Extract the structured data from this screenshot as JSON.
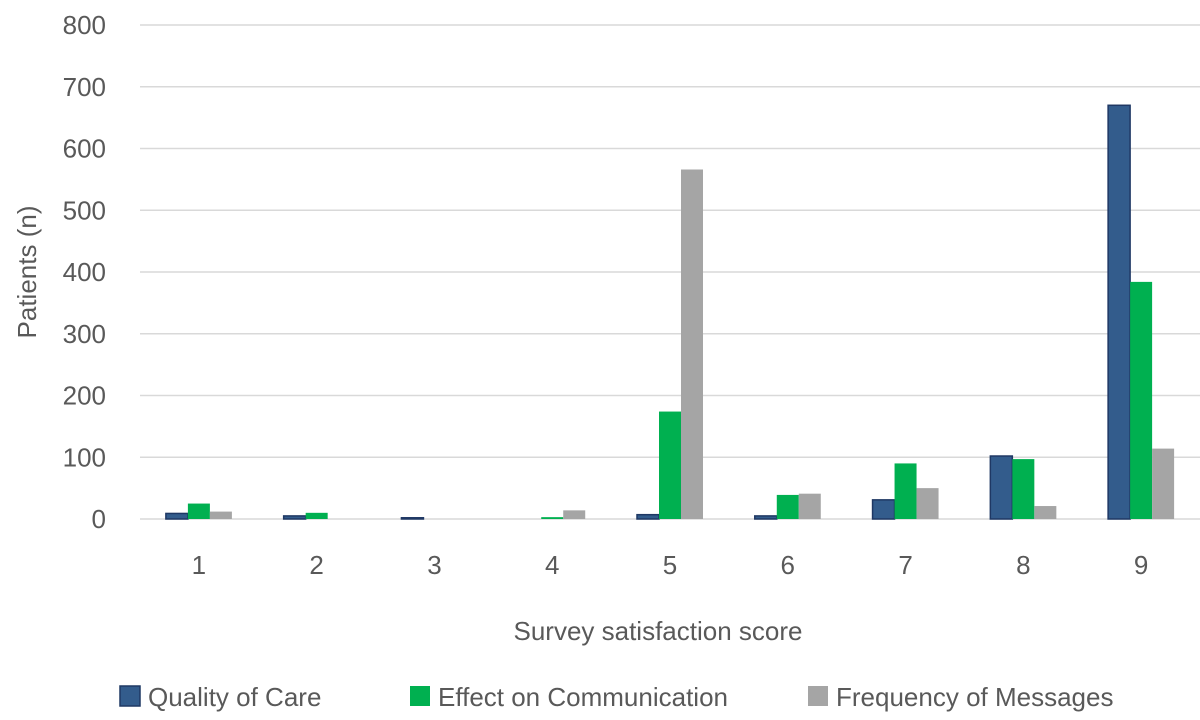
{
  "chart_data": {
    "type": "bar",
    "title": "",
    "xlabel": "Survey satisfaction score",
    "ylabel": "Patients (n)",
    "ylim": [
      0,
      800
    ],
    "yticks": [
      0,
      100,
      200,
      300,
      400,
      500,
      600,
      700,
      800
    ],
    "grid": true,
    "legend_position": "bottom",
    "categories": [
      "1",
      "2",
      "3",
      "4",
      "5",
      "6",
      "7",
      "8",
      "9"
    ],
    "series": [
      {
        "name": "Quality of Care",
        "color": "#335c8c",
        "values": [
          9,
          5,
          2,
          0,
          7,
          5,
          31,
          102,
          670
        ]
      },
      {
        "name": "Effect on Communication",
        "color": "#00b050",
        "values": [
          25,
          10,
          0,
          3,
          174,
          39,
          90,
          97,
          384
        ]
      },
      {
        "name": "Frequency of Messages",
        "color": "#a5a5a5",
        "values": [
          12,
          0,
          0,
          14,
          566,
          41,
          50,
          21,
          114
        ]
      }
    ]
  }
}
